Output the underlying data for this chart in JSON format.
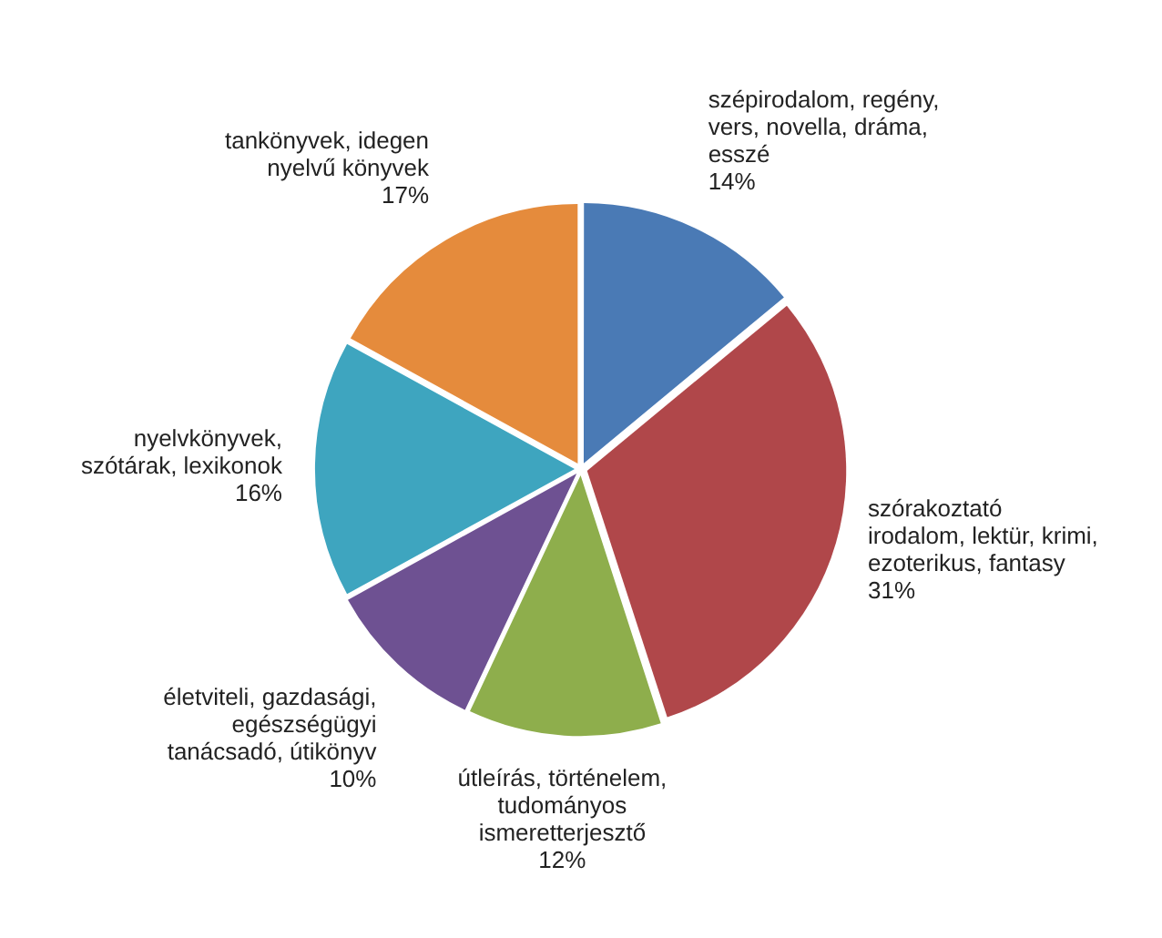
{
  "chart_data": {
    "type": "pie",
    "categories": [
      "szépirodalom, regény, vers, novella, dráma, esszé",
      "szórakoztató irodalom, lektür, krimi, ezoterikus, fantasy",
      "útleírás, történelem, tudományos ismeretterjesztő",
      "életviteli, gazdasági, egészségügyi tanácsadó, útikönyv",
      "nyelvkönyvek, szótárak, lexikonok",
      "tankönyvek, idegen nyelvű könyvek"
    ],
    "values": [
      14,
      31,
      12,
      10,
      16,
      17
    ],
    "colors": [
      "#4a7ab5",
      "#b0474a",
      "#8eae4c",
      "#6e5192",
      "#3ea5bf",
      "#e58b3c"
    ],
    "value_labels": [
      "14%",
      "31%",
      "12%",
      "10%",
      "16%",
      "17%"
    ]
  }
}
